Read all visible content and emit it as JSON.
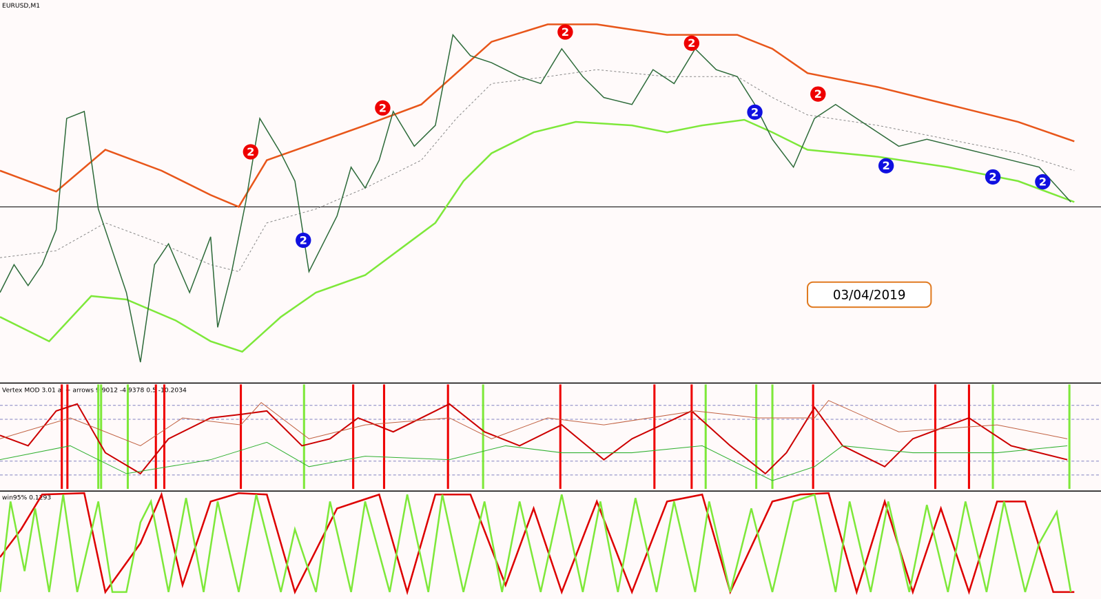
{
  "symbol": "EURUSD,M1",
  "indicator_1": "Vertex MOD 3.01 al + arrows 9.9012 -4.9378 0.5 -10.2034",
  "indicator_2": "win95% 0.1293",
  "date_box": "03/04/2019",
  "signal_label": "2"
}
